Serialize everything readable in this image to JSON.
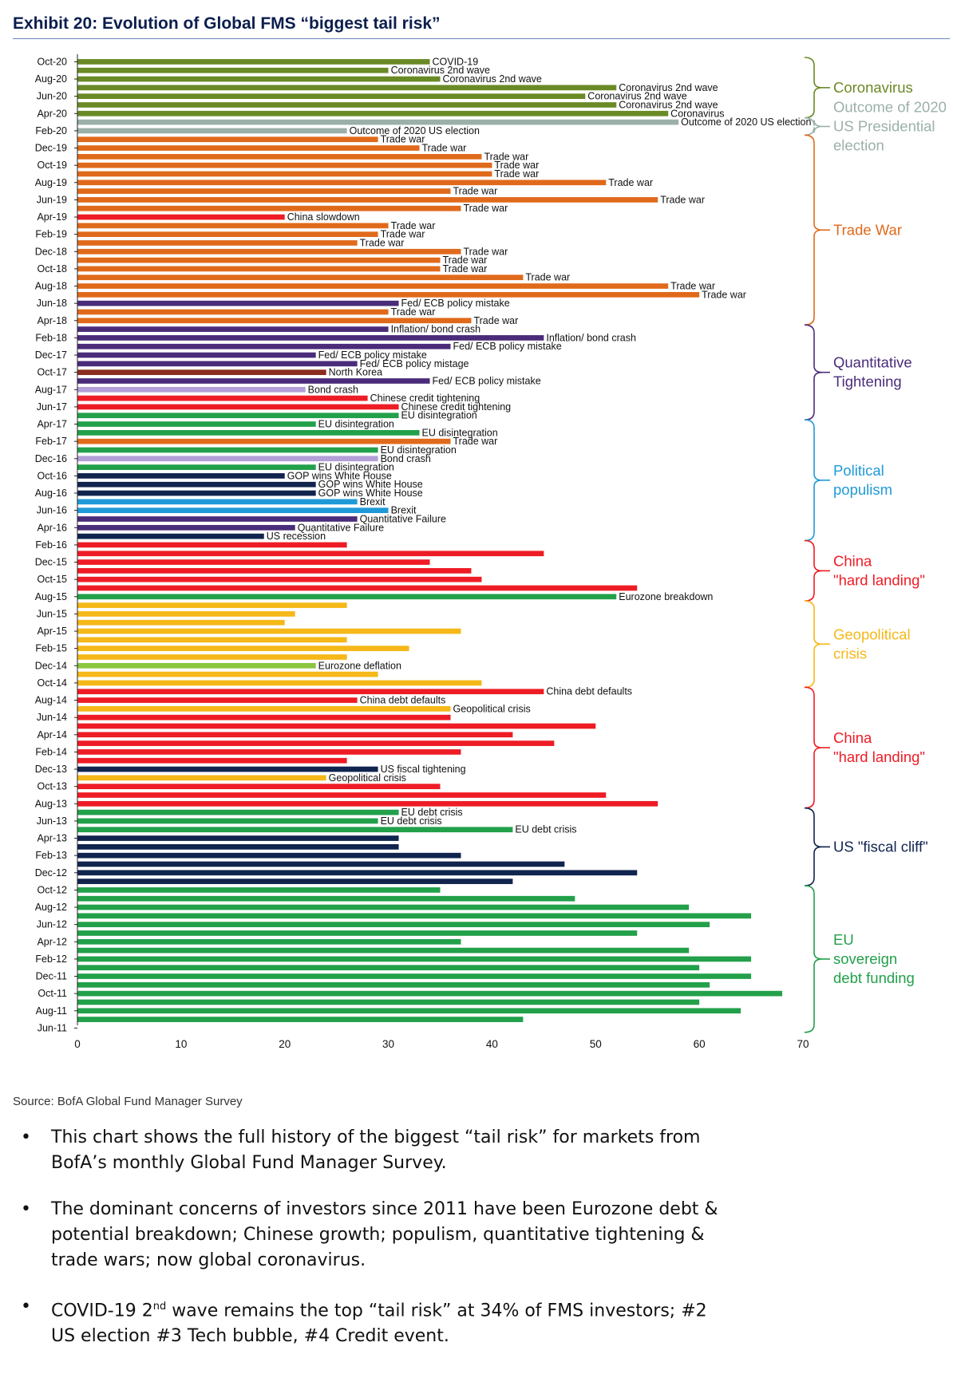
{
  "title": "Exhibit 20: Evolution of Global FMS “biggest tail risk”",
  "source": "Source: BofA Global Fund Manager Survey",
  "bullets": [
    {
      "text": "This chart shows the full history of the biggest “tail risk” for markets from BofA’s monthly Global Fund Manager Survey."
    },
    {
      "text": "The dominant concerns of investors since 2011 have been Eurozone debt & potential breakdown; Chinese growth; populism, quantitative tightening & trade wars; now global coronavirus."
    },
    {
      "pre": "COVID-19 2",
      "sup": "nd",
      "post": " wave remains the top “tail risk” at 34% of FMS investors; #2 US election #3 Tech bubble, #4 Credit event."
    }
  ],
  "colors": {
    "coronavirus": "#6a8a26",
    "election": "#9bb0a8",
    "trade": "#e06a1b",
    "qt": "#4a2c7a",
    "qt_light": "#b49fd8",
    "populism": "#1f9ad8",
    "china": "#ee1c25",
    "geo": "#f5b818",
    "fiscal": "#10244e",
    "eu": "#22a04a",
    "eu_light": "#8cc63f",
    "northkorea": "#8b2d1e",
    "title": "#0b1e4d"
  },
  "chart_data": {
    "type": "bar",
    "orientation": "horizontal",
    "title": "Exhibit 20: Evolution of Global FMS “biggest tail risk”",
    "xlabel": "",
    "ylabel": "",
    "xlim": [
      0,
      70
    ],
    "xticks": [
      0,
      10,
      20,
      30,
      40,
      50,
      60,
      70
    ],
    "ytick_labels": [
      "Oct-20",
      "Aug-20",
      "Jun-20",
      "Apr-20",
      "Feb-20",
      "Dec-19",
      "Oct-19",
      "Aug-19",
      "Jun-19",
      "Apr-19",
      "Feb-19",
      "Dec-18",
      "Oct-18",
      "Aug-18",
      "Jun-18",
      "Apr-18",
      "Feb-18",
      "Dec-17",
      "Oct-17",
      "Aug-17",
      "Jun-17",
      "Apr-17",
      "Feb-17",
      "Dec-16",
      "Oct-16",
      "Aug-16",
      "Jun-16",
      "Apr-16",
      "Feb-16",
      "Dec-15",
      "Oct-15",
      "Aug-15",
      "Jun-15",
      "Apr-15",
      "Feb-15",
      "Dec-14",
      "Oct-14",
      "Aug-14",
      "Jun-14",
      "Apr-14",
      "Feb-14",
      "Dec-13",
      "Oct-13",
      "Aug-13",
      "Jun-13",
      "Apr-13",
      "Feb-13",
      "Dec-12",
      "Oct-12",
      "Aug-12",
      "Jun-12",
      "Apr-12",
      "Feb-12",
      "Dec-11",
      "Oct-11",
      "Aug-11",
      "Jun-11"
    ],
    "bars": [
      {
        "value": 34,
        "color": "coronavirus",
        "label": "COVID-19"
      },
      {
        "value": 30,
        "color": "coronavirus",
        "label": "Coronavirus 2nd wave"
      },
      {
        "value": 35,
        "color": "coronavirus",
        "label": "Coronavirus 2nd wave"
      },
      {
        "value": 52,
        "color": "coronavirus",
        "label": "Coronavirus 2nd wave"
      },
      {
        "value": 49,
        "color": "coronavirus",
        "label": "Coronavirus 2nd wave"
      },
      {
        "value": 52,
        "color": "coronavirus",
        "label": "Coronavirus 2nd wave"
      },
      {
        "value": 57,
        "color": "coronavirus",
        "label": "Coronavirus"
      },
      {
        "value": 58,
        "color": "election",
        "label": "Outcome of 2020 US election"
      },
      {
        "value": 26,
        "color": "election",
        "label": "Outcome of 2020 US election"
      },
      {
        "value": 29,
        "color": "trade",
        "label": "Trade war"
      },
      {
        "value": 33,
        "color": "trade",
        "label": "Trade war"
      },
      {
        "value": 39,
        "color": "trade",
        "label": "Trade war"
      },
      {
        "value": 40,
        "color": "trade",
        "label": "Trade war"
      },
      {
        "value": 40,
        "color": "trade",
        "label": "Trade war"
      },
      {
        "value": 51,
        "color": "trade",
        "label": "Trade war"
      },
      {
        "value": 36,
        "color": "trade",
        "label": "Trade war"
      },
      {
        "value": 56,
        "color": "trade",
        "label": "Trade war"
      },
      {
        "value": 37,
        "color": "trade",
        "label": "Trade war"
      },
      {
        "value": 20,
        "color": "china",
        "label": "China slowdown"
      },
      {
        "value": 30,
        "color": "trade",
        "label": "Trade war"
      },
      {
        "value": 29,
        "color": "trade",
        "label": "Trade war"
      },
      {
        "value": 27,
        "color": "trade",
        "label": "Trade war"
      },
      {
        "value": 37,
        "color": "trade",
        "label": "Trade war"
      },
      {
        "value": 35,
        "color": "trade",
        "label": "Trade war"
      },
      {
        "value": 35,
        "color": "trade",
        "label": "Trade war"
      },
      {
        "value": 43,
        "color": "trade",
        "label": "Trade war"
      },
      {
        "value": 57,
        "color": "trade",
        "label": "Trade war"
      },
      {
        "value": 60,
        "color": "trade",
        "label": "Trade war"
      },
      {
        "value": 31,
        "color": "qt",
        "label": "Fed/ ECB policy mistake"
      },
      {
        "value": 30,
        "color": "trade",
        "label": "Trade war"
      },
      {
        "value": 38,
        "color": "trade",
        "label": "Trade war"
      },
      {
        "value": 30,
        "color": "qt",
        "label": "Inflation/ bond crash"
      },
      {
        "value": 45,
        "color": "qt",
        "label": "Inflation/ bond crash"
      },
      {
        "value": 36,
        "color": "qt",
        "label": "Fed/ ECB policy mistake"
      },
      {
        "value": 23,
        "color": "qt",
        "label": "Fed/ ECB policy mistake"
      },
      {
        "value": 27,
        "color": "qt",
        "label": "Fed/ ECB policy mistage"
      },
      {
        "value": 24,
        "color": "northkorea",
        "label": "North Korea"
      },
      {
        "value": 34,
        "color": "qt",
        "label": "Fed/ ECB policy mistake"
      },
      {
        "value": 22,
        "color": "qt_light",
        "label": "Bond crash"
      },
      {
        "value": 28,
        "color": "china",
        "label": "Chinese credit tightening"
      },
      {
        "value": 31,
        "color": "china",
        "label": "Chinese credit tightening"
      },
      {
        "value": 31,
        "color": "eu",
        "label": "EU disintegration"
      },
      {
        "value": 23,
        "color": "eu",
        "label": "EU disintegration"
      },
      {
        "value": 33,
        "color": "eu",
        "label": "EU disintegration"
      },
      {
        "value": 36,
        "color": "trade",
        "label": "Trade war"
      },
      {
        "value": 29,
        "color": "eu",
        "label": "EU disintegration"
      },
      {
        "value": 29,
        "color": "qt_light",
        "label": "Bond crash"
      },
      {
        "value": 23,
        "color": "eu",
        "label": "EU disintegration"
      },
      {
        "value": 20,
        "color": "fiscal",
        "label": "GOP wins White House"
      },
      {
        "value": 23,
        "color": "fiscal",
        "label": "GOP wins White House"
      },
      {
        "value": 23,
        "color": "fiscal",
        "label": "GOP wins White House"
      },
      {
        "value": 27,
        "color": "populism",
        "label": "Brexit"
      },
      {
        "value": 30,
        "color": "populism",
        "label": "Brexit"
      },
      {
        "value": 27,
        "color": "qt",
        "label": "Quantitative Failure"
      },
      {
        "value": 21,
        "color": "qt",
        "label": "Quantitative Failure"
      },
      {
        "value": 18,
        "color": "fiscal",
        "label": "US recession"
      },
      {
        "value": 26,
        "color": "china",
        "label": ""
      },
      {
        "value": 45,
        "color": "china",
        "label": ""
      },
      {
        "value": 34,
        "color": "china",
        "label": ""
      },
      {
        "value": 38,
        "color": "china",
        "label": ""
      },
      {
        "value": 39,
        "color": "china",
        "label": ""
      },
      {
        "value": 54,
        "color": "china",
        "label": ""
      },
      {
        "value": 52,
        "color": "eu",
        "label": "Eurozone breakdown"
      },
      {
        "value": 26,
        "color": "geo",
        "label": ""
      },
      {
        "value": 21,
        "color": "geo",
        "label": ""
      },
      {
        "value": 20,
        "color": "geo",
        "label": ""
      },
      {
        "value": 37,
        "color": "geo",
        "label": ""
      },
      {
        "value": 26,
        "color": "geo",
        "label": ""
      },
      {
        "value": 32,
        "color": "geo",
        "label": ""
      },
      {
        "value": 26,
        "color": "geo",
        "label": ""
      },
      {
        "value": 23,
        "color": "eu_light",
        "label": "Eurozone deflation"
      },
      {
        "value": 29,
        "color": "geo",
        "label": ""
      },
      {
        "value": 39,
        "color": "geo",
        "label": ""
      },
      {
        "value": 45,
        "color": "china",
        "label": "China debt defaults"
      },
      {
        "value": 27,
        "color": "china",
        "label": "China debt defaults"
      },
      {
        "value": 36,
        "color": "geo",
        "label": "Geopolitical crisis"
      },
      {
        "value": 36,
        "color": "china",
        "label": ""
      },
      {
        "value": 50,
        "color": "china",
        "label": ""
      },
      {
        "value": 42,
        "color": "china",
        "label": ""
      },
      {
        "value": 46,
        "color": "china",
        "label": ""
      },
      {
        "value": 37,
        "color": "china",
        "label": ""
      },
      {
        "value": 26,
        "color": "china",
        "label": ""
      },
      {
        "value": 29,
        "color": "fiscal",
        "label": "US fiscal tightening"
      },
      {
        "value": 24,
        "color": "geo",
        "label": "Geopolitical crisis"
      },
      {
        "value": 35,
        "color": "china",
        "label": ""
      },
      {
        "value": 51,
        "color": "china",
        "label": ""
      },
      {
        "value": 56,
        "color": "china",
        "label": ""
      },
      {
        "value": 31,
        "color": "eu",
        "label": "EU debt crisis"
      },
      {
        "value": 29,
        "color": "eu",
        "label": "EU debt crisis"
      },
      {
        "value": 42,
        "color": "eu",
        "label": "EU debt crisis"
      },
      {
        "value": 31,
        "color": "fiscal",
        "label": ""
      },
      {
        "value": 31,
        "color": "fiscal",
        "label": ""
      },
      {
        "value": 37,
        "color": "fiscal",
        "label": ""
      },
      {
        "value": 47,
        "color": "fiscal",
        "label": ""
      },
      {
        "value": 54,
        "color": "fiscal",
        "label": ""
      },
      {
        "value": 42,
        "color": "fiscal",
        "label": ""
      },
      {
        "value": 35,
        "color": "eu",
        "label": ""
      },
      {
        "value": 48,
        "color": "eu",
        "label": ""
      },
      {
        "value": 59,
        "color": "eu",
        "label": ""
      },
      {
        "value": 65,
        "color": "eu",
        "label": ""
      },
      {
        "value": 61,
        "color": "eu",
        "label": ""
      },
      {
        "value": 54,
        "color": "eu",
        "label": ""
      },
      {
        "value": 37,
        "color": "eu",
        "label": ""
      },
      {
        "value": 59,
        "color": "eu",
        "label": ""
      },
      {
        "value": 65,
        "color": "eu",
        "label": ""
      },
      {
        "value": 60,
        "color": "eu",
        "label": ""
      },
      {
        "value": 65,
        "color": "eu",
        "label": ""
      },
      {
        "value": 61,
        "color": "eu",
        "label": ""
      },
      {
        "value": 68,
        "color": "eu",
        "label": ""
      },
      {
        "value": 60,
        "color": "eu",
        "label": ""
      },
      {
        "value": 64,
        "color": "eu",
        "label": ""
      },
      {
        "value": 43,
        "color": "eu",
        "label": ""
      }
    ],
    "groups": [
      {
        "lines": [
          "Coronavirus"
        ],
        "color": "coronavirus",
        "start_bar": 0,
        "end_bar": 6
      },
      {
        "lines": [
          "Outcome of 2020",
          "US Presidential",
          "election"
        ],
        "color": "election",
        "start_bar": 7,
        "end_bar": 8
      },
      {
        "lines": [
          "Trade War"
        ],
        "color": "trade",
        "start_bar": 9,
        "end_bar": 30
      },
      {
        "lines": [
          "Quantitative",
          "Tightening"
        ],
        "color": "qt",
        "start_bar": 31,
        "end_bar": 41
      },
      {
        "lines": [
          "Political",
          "populism"
        ],
        "color": "populism",
        "start_bar": 42,
        "end_bar": 55
      },
      {
        "lines": [
          "China",
          "\"hard landing\""
        ],
        "color": "china",
        "start_bar": 56,
        "end_bar": 62
      },
      {
        "lines": [
          "Geopolitical",
          "crisis"
        ],
        "color": "geo",
        "start_bar": 63,
        "end_bar": 72
      },
      {
        "lines": [
          "China",
          "\"hard landing\""
        ],
        "color": "china",
        "start_bar": 73,
        "end_bar": 86
      },
      {
        "lines": [
          "US \"fiscal cliff\""
        ],
        "color": "fiscal",
        "start_bar": 87,
        "end_bar": 95
      },
      {
        "lines": [
          "EU",
          "sovereign",
          "debt funding"
        ],
        "color": "eu",
        "start_bar": 96,
        "end_bar": 112
      }
    ]
  }
}
